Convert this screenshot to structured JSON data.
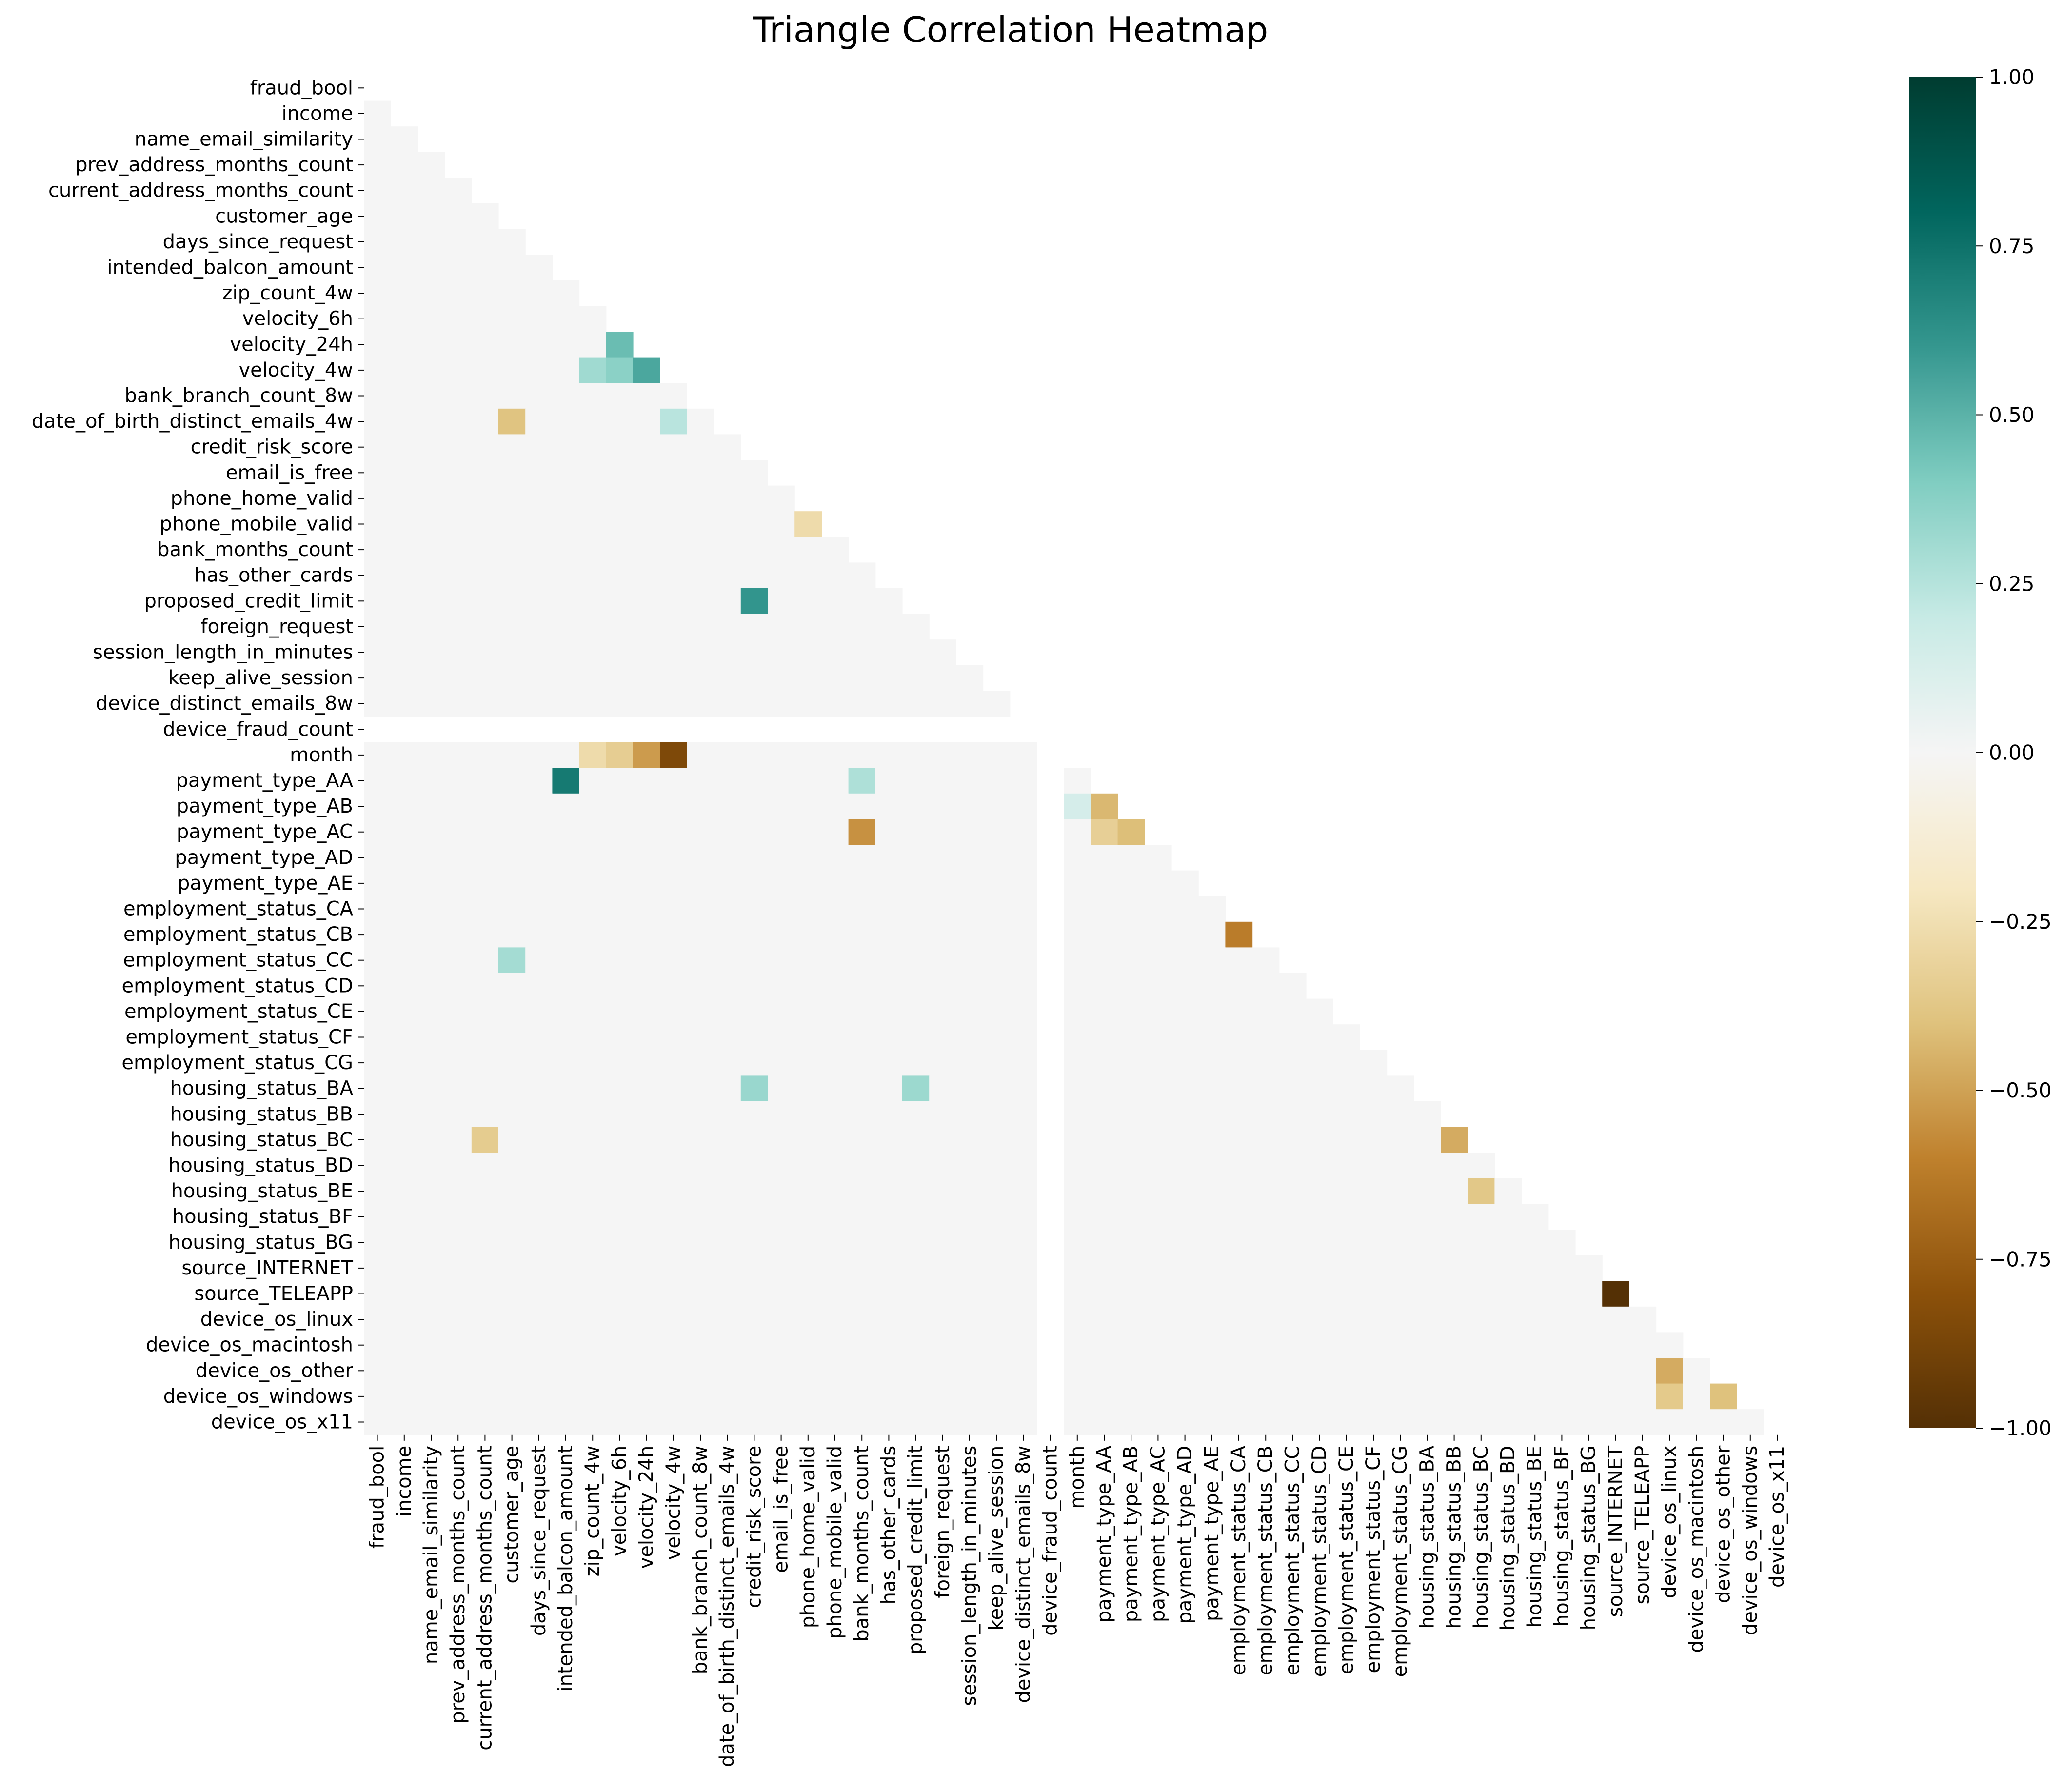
{
  "chart_data": {
    "type": "heatmap",
    "title": "Triangle Correlation Heatmap",
    "xlabel": "",
    "ylabel": "",
    "mask": "upper triangle incl. diagonal",
    "variables": [
      "fraud_bool",
      "income",
      "name_email_similarity",
      "prev_address_months_count",
      "current_address_months_count",
      "customer_age",
      "days_since_request",
      "intended_balcon_amount",
      "zip_count_4w",
      "velocity_6h",
      "velocity_24h",
      "velocity_4w",
      "bank_branch_count_8w",
      "date_of_birth_distinct_emails_4w",
      "credit_risk_score",
      "email_is_free",
      "phone_home_valid",
      "phone_mobile_valid",
      "bank_months_count",
      "has_other_cards",
      "proposed_credit_limit",
      "foreign_request",
      "session_length_in_minutes",
      "keep_alive_session",
      "device_distinct_emails_8w",
      "device_fraud_count",
      "month",
      "payment_type_AA",
      "payment_type_AB",
      "payment_type_AC",
      "payment_type_AD",
      "payment_type_AE",
      "employment_status_CA",
      "employment_status_CB",
      "employment_status_CC",
      "employment_status_CD",
      "employment_status_CE",
      "employment_status_CF",
      "employment_status_CG",
      "housing_status_BA",
      "housing_status_BB",
      "housing_status_BC",
      "housing_status_BD",
      "housing_status_BE",
      "housing_status_BF",
      "housing_status_BG",
      "source_INTERNET",
      "source_TELEAPP",
      "device_os_linux",
      "device_os_macintosh",
      "device_os_other",
      "device_os_windows",
      "device_os_x11"
    ],
    "nan_variable": "device_fraud_count",
    "notable_correlations": [
      {
        "row": "velocity_24h",
        "col": "velocity_6h",
        "value": 0.46
      },
      {
        "row": "velocity_4w",
        "col": "velocity_6h",
        "value": 0.37
      },
      {
        "row": "velocity_4w",
        "col": "velocity_24h",
        "value": 0.54
      },
      {
        "row": "velocity_4w",
        "col": "zip_count_4w",
        "value": 0.31
      },
      {
        "row": "date_of_birth_distinct_emails_4w",
        "col": "customer_age",
        "value": -0.39
      },
      {
        "row": "date_of_birth_distinct_emails_4w",
        "col": "velocity_4w",
        "value": 0.24
      },
      {
        "row": "proposed_credit_limit",
        "col": "credit_risk_score",
        "value": 0.61
      },
      {
        "row": "phone_mobile_valid",
        "col": "phone_home_valid",
        "value": -0.27
      },
      {
        "row": "month",
        "col": "velocity_4w",
        "value": -0.85
      },
      {
        "row": "month",
        "col": "velocity_24h",
        "value": -0.52
      },
      {
        "row": "month",
        "col": "velocity_6h",
        "value": -0.34
      },
      {
        "row": "month",
        "col": "zip_count_4w",
        "value": -0.27
      },
      {
        "row": "payment_type_AA",
        "col": "intended_balcon_amount",
        "value": 0.72
      },
      {
        "row": "payment_type_AA",
        "col": "bank_months_count",
        "value": 0.27
      },
      {
        "row": "payment_type_AB",
        "col": "month",
        "value": 0.14
      },
      {
        "row": "payment_type_AB",
        "col": "payment_type_AA",
        "value": -0.43
      },
      {
        "row": "payment_type_AC",
        "col": "bank_months_count",
        "value": -0.55
      },
      {
        "row": "payment_type_AC",
        "col": "payment_type_AA",
        "value": -0.33
      },
      {
        "row": "payment_type_AC",
        "col": "payment_type_AB",
        "value": -0.41
      },
      {
        "row": "employment_status_CB",
        "col": "employment_status_CA",
        "value": -0.62
      },
      {
        "row": "employment_status_CC",
        "col": "customer_age",
        "value": 0.3
      },
      {
        "row": "housing_status_BA",
        "col": "credit_risk_score",
        "value": 0.33
      },
      {
        "row": "housing_status_BA",
        "col": "proposed_credit_limit",
        "value": 0.32
      },
      {
        "row": "housing_status_BC",
        "col": "current_address_months_count",
        "value": -0.35
      },
      {
        "row": "housing_status_BC",
        "col": "housing_status_BB",
        "value": -0.47
      },
      {
        "row": "housing_status_BE",
        "col": "housing_status_BC",
        "value": -0.37
      },
      {
        "row": "source_TELEAPP",
        "col": "source_INTERNET",
        "value": -1.0
      },
      {
        "row": "device_os_other",
        "col": "device_os_linux",
        "value": -0.47
      },
      {
        "row": "device_os_windows",
        "col": "device_os_linux",
        "value": -0.36
      },
      {
        "row": "device_os_windows",
        "col": "device_os_other",
        "value": -0.4
      }
    ],
    "colormap": "BrBG",
    "colorbar": {
      "min": -1.0,
      "max": 1.0,
      "ticks": [
        "1.00",
        "0.75",
        "0.50",
        "0.25",
        "0.00",
        "−0.25",
        "−0.50",
        "−0.75",
        "−1.00"
      ]
    },
    "colors": {
      "neg_full": "#543005",
      "neutral": "#f5f5f5",
      "pos_full": "#003c30"
    }
  }
}
